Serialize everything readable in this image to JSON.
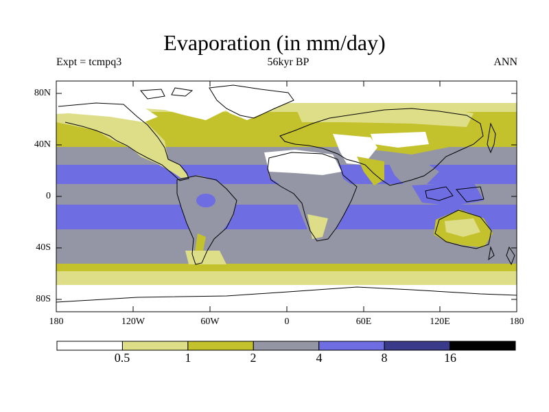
{
  "title": "Evaporation (in mm/day)",
  "expt_label": "Expt = tcmpq3",
  "period_label": "56kyr BP",
  "season_label": "ANN",
  "lat_ticks": [
    "80N",
    "40N",
    "0",
    "40S",
    "80S"
  ],
  "lon_ticks": [
    "180",
    "120W",
    "60W",
    "0",
    "60E",
    "120E",
    "180"
  ],
  "colorbar": {
    "colors": [
      "#ffffff",
      "#dede88",
      "#c3c12c",
      "#9496a6",
      "#6e6ee2",
      "#3a3a8a",
      "#000000"
    ],
    "labels": [
      "0.5",
      "1",
      "2",
      "4",
      "8",
      "16"
    ]
  }
}
